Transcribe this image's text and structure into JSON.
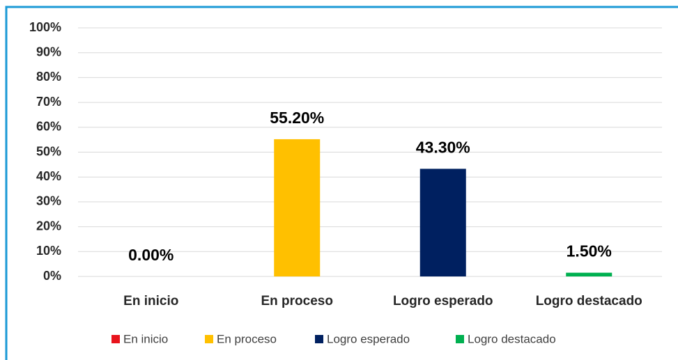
{
  "chart_data": {
    "type": "bar",
    "categories": [
      "En inicio",
      "En proceso",
      "Logro esperado",
      "Logro destacado"
    ],
    "values": [
      0,
      55.2,
      43.3,
      1.5
    ],
    "value_labels": [
      "0.00%",
      "55.20%",
      "43.30%",
      "1.50%"
    ],
    "colors": [
      "#e8141c",
      "#ffc000",
      "#002060",
      "#00b050"
    ],
    "ylim": [
      0,
      100
    ],
    "yticks": [
      {
        "value": 0,
        "label": "0%"
      },
      {
        "value": 10,
        "label": "10%"
      },
      {
        "value": 20,
        "label": "20%"
      },
      {
        "value": 30,
        "label": "30%"
      },
      {
        "value": 40,
        "label": "40%"
      },
      {
        "value": 50,
        "label": "50%"
      },
      {
        "value": 60,
        "label": "60%"
      },
      {
        "value": 70,
        "label": "70%"
      },
      {
        "value": 80,
        "label": "80%"
      },
      {
        "value": 90,
        "label": "90%"
      },
      {
        "value": 100,
        "label": "100%"
      }
    ],
    "grid": true,
    "legend": "bottom"
  }
}
